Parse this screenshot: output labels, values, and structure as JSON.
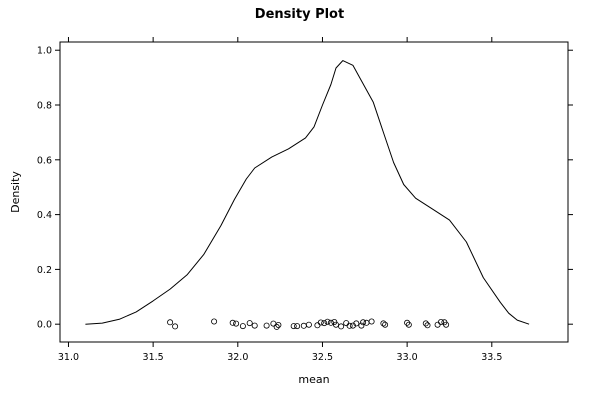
{
  "chart_data": {
    "type": "line",
    "title": "Density Plot",
    "xlabel": "mean",
    "ylabel": "Density",
    "xlim": [
      30.95,
      33.95
    ],
    "ylim": [
      -0.065,
      1.03
    ],
    "x_ticks": [
      31.0,
      31.5,
      32.0,
      32.5,
      33.0,
      33.5
    ],
    "x_tick_labels": [
      "31.0",
      "31.5",
      "32.0",
      "32.5",
      "33.0",
      "33.5"
    ],
    "y_ticks": [
      0.0,
      0.2,
      0.4,
      0.6,
      0.8,
      1.0
    ],
    "y_tick_labels": [
      "0.0",
      "0.2",
      "0.4",
      "0.6",
      "0.8",
      "1.0"
    ],
    "grid": false,
    "series": [
      {
        "type": "line",
        "points": [
          [
            31.1,
            0.0
          ],
          [
            31.2,
            0.004
          ],
          [
            31.3,
            0.018
          ],
          [
            31.4,
            0.045
          ],
          [
            31.5,
            0.085
          ],
          [
            31.6,
            0.128
          ],
          [
            31.7,
            0.18
          ],
          [
            31.8,
            0.255
          ],
          [
            31.9,
            0.36
          ],
          [
            31.98,
            0.455
          ],
          [
            32.05,
            0.53
          ],
          [
            32.1,
            0.57
          ],
          [
            32.2,
            0.61
          ],
          [
            32.3,
            0.64
          ],
          [
            32.4,
            0.68
          ],
          [
            32.45,
            0.72
          ],
          [
            32.5,
            0.8
          ],
          [
            32.55,
            0.875
          ],
          [
            32.58,
            0.935
          ],
          [
            32.62,
            0.962
          ],
          [
            32.68,
            0.945
          ],
          [
            32.72,
            0.9
          ],
          [
            32.8,
            0.81
          ],
          [
            32.86,
            0.7
          ],
          [
            32.92,
            0.59
          ],
          [
            32.98,
            0.51
          ],
          [
            33.05,
            0.46
          ],
          [
            33.15,
            0.42
          ],
          [
            33.25,
            0.38
          ],
          [
            33.35,
            0.3
          ],
          [
            33.45,
            0.17
          ],
          [
            33.55,
            0.08
          ],
          [
            33.6,
            0.04
          ],
          [
            33.65,
            0.015
          ],
          [
            33.72,
            0.0
          ]
        ]
      },
      {
        "type": "scatter",
        "points": [
          [
            31.6,
            0.007
          ],
          [
            31.63,
            -0.008
          ],
          [
            31.86,
            0.01
          ],
          [
            31.97,
            0.005
          ],
          [
            31.99,
            0.002
          ],
          [
            32.03,
            -0.007
          ],
          [
            32.07,
            0.004
          ],
          [
            32.1,
            -0.005
          ],
          [
            32.17,
            -0.005
          ],
          [
            32.21,
            0.002
          ],
          [
            32.23,
            -0.01
          ],
          [
            32.24,
            -0.003
          ],
          [
            32.33,
            -0.007
          ],
          [
            32.35,
            -0.007
          ],
          [
            32.39,
            -0.006
          ],
          [
            32.42,
            -0.002
          ],
          [
            32.47,
            -0.004
          ],
          [
            32.49,
            0.006
          ],
          [
            32.51,
            0.004
          ],
          [
            32.53,
            0.009
          ],
          [
            32.55,
            0.005
          ],
          [
            32.57,
            0.008
          ],
          [
            32.58,
            -0.002
          ],
          [
            32.61,
            -0.008
          ],
          [
            32.64,
            0.004
          ],
          [
            32.66,
            -0.006
          ],
          [
            32.68,
            -0.005
          ],
          [
            32.7,
            0.003
          ],
          [
            32.73,
            -0.005
          ],
          [
            32.74,
            0.007
          ],
          [
            32.76,
            0.005
          ],
          [
            32.79,
            0.01
          ],
          [
            32.86,
            0.003
          ],
          [
            32.87,
            -0.002
          ],
          [
            33.0,
            0.005
          ],
          [
            33.01,
            -0.002
          ],
          [
            33.11,
            0.003
          ],
          [
            33.12,
            -0.004
          ],
          [
            33.18,
            -0.002
          ],
          [
            33.2,
            0.008
          ],
          [
            33.22,
            0.007
          ],
          [
            33.23,
            -0.002
          ]
        ]
      }
    ]
  }
}
